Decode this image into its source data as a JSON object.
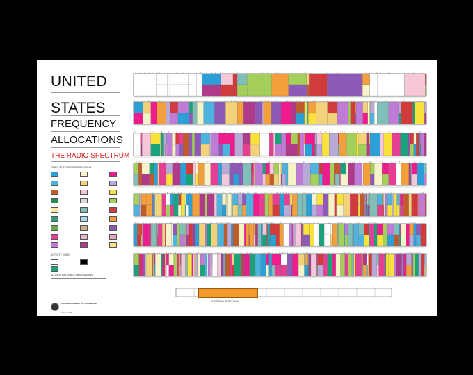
{
  "title": {
    "line1": "UNITED",
    "line2": "STATES",
    "line3": "FREQUENCY",
    "line4": "ALLOCATIONS",
    "subtitle": "THE RADIO SPECTRUM"
  },
  "legend": {
    "heading": "RADIO SERVICES COLOR LEGEND",
    "items": [
      {
        "color": "#2b9fd6"
      },
      {
        "color": "#f7f3c8"
      },
      {
        "color": "#ee1c8c"
      },
      {
        "color": "#4fb3e0"
      },
      {
        "color": "#f3d27a"
      },
      {
        "color": "#b9a9d8"
      },
      {
        "color": "#c25b2a"
      },
      {
        "color": "#f6c7d9"
      },
      {
        "color": "#f9e23c"
      },
      {
        "color": "#2e8b57"
      },
      {
        "color": "#d9d9d9"
      },
      {
        "color": "#a4cf5a"
      },
      {
        "color": "#f9e8a8"
      },
      {
        "color": "#7fbfb7"
      },
      {
        "color": "#d23b3b"
      },
      {
        "color": "#3a9a79"
      },
      {
        "color": "#a8d7ef"
      },
      {
        "color": "#f29f3c"
      },
      {
        "color": "#6aa84f"
      },
      {
        "color": "#c8b18a"
      },
      {
        "color": "#8e5ab8"
      },
      {
        "color": "#e43f92"
      },
      {
        "color": "#eab1cf"
      },
      {
        "color": "#e6a6b8"
      },
      {
        "color": "#c07bd6"
      },
      {
        "color": "#b03a8a"
      },
      {
        "color": "#fbe08a"
      }
    ]
  },
  "activity": {
    "heading": "ACTIVITY CODE",
    "items": [
      {
        "color": "#ffffff"
      },
      {
        "color": "#000000"
      },
      {
        "color": "#1aa37a"
      }
    ]
  },
  "allocation": {
    "heading": "ALLOCATION USAGE DESIGNATION"
  },
  "chart_box": {
    "label": "THE RADIO SPECTRUM"
  },
  "footer": {
    "dept": "U.S. DEPARTMENT OF COMMERCE",
    "date": "October 2016"
  },
  "palette": [
    "#ee1c8c",
    "#c07bd6",
    "#f7f3c8",
    "#2b9fd6",
    "#a4cf5a",
    "#f9e23c",
    "#d23b3b",
    "#f3d27a",
    "#8e5ab8",
    "#4fb3e0",
    "#f6c7d9",
    "#1aa37a",
    "#c25b2a",
    "#b9a9d8",
    "#f29f3c",
    "#e43f92",
    "#ffffff",
    "#7fbfb7",
    "#b03a8a"
  ]
}
